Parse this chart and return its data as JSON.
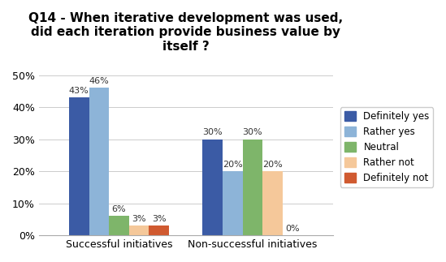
{
  "title": "Q14 - When iterative development was used,\ndid each iteration provide business value by\nitself ?",
  "categories": [
    "Successful initiatives",
    "Non-successful initiatives"
  ],
  "series": [
    {
      "label": "Definitely yes",
      "values": [
        43,
        30
      ],
      "color": "#3B5BA5"
    },
    {
      "label": "Rather yes",
      "values": [
        46,
        20
      ],
      "color": "#8DB4D8"
    },
    {
      "label": "Neutral",
      "values": [
        6,
        30
      ],
      "color": "#7EB56A"
    },
    {
      "label": "Rather not",
      "values": [
        3,
        20
      ],
      "color": "#F5C89A"
    },
    {
      "label": "Definitely not",
      "values": [
        3,
        0
      ],
      "color": "#D05A30"
    }
  ],
  "ylim": [
    0,
    55
  ],
  "yticks": [
    0,
    10,
    20,
    30,
    40,
    50
  ],
  "bar_width": 0.12,
  "group_centers": [
    0.35,
    1.15
  ],
  "title_fontsize": 11,
  "tick_fontsize": 9,
  "label_fontsize": 8,
  "legend_fontsize": 8.5,
  "background_color": "#FFFFFF"
}
